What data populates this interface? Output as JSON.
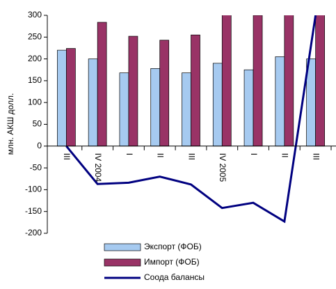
{
  "chart_data": {
    "type": "bar-line",
    "y_label": "млн. АКШ долл.",
    "categories": [
      "III",
      "IV 2004",
      "I",
      "II",
      "III",
      "IV 2005",
      "I",
      "II",
      "III"
    ],
    "series": [
      {
        "name": "Экспорт (ФОБ)",
        "type": "bar",
        "color": "#a6caf0",
        "values": [
          220,
          200,
          168,
          178,
          168,
          190,
          175,
          205,
          200
        ]
      },
      {
        "name": "Импорт (ФОБ)",
        "type": "bar",
        "color": "#993366",
        "values": [
          224,
          284,
          252,
          243,
          255,
          310,
          300,
          315,
          310
        ]
      },
      {
        "name": "Соода балансы",
        "type": "line",
        "color": "#000080",
        "values": [
          0,
          -87,
          -84,
          -70,
          -88,
          -142,
          -130,
          -173,
          300
        ]
      }
    ],
    "ylim": [
      -200,
      300
    ],
    "yticks": [
      -200,
      -150,
      -100,
      -50,
      0,
      50,
      100,
      150,
      200,
      250,
      300
    ]
  }
}
